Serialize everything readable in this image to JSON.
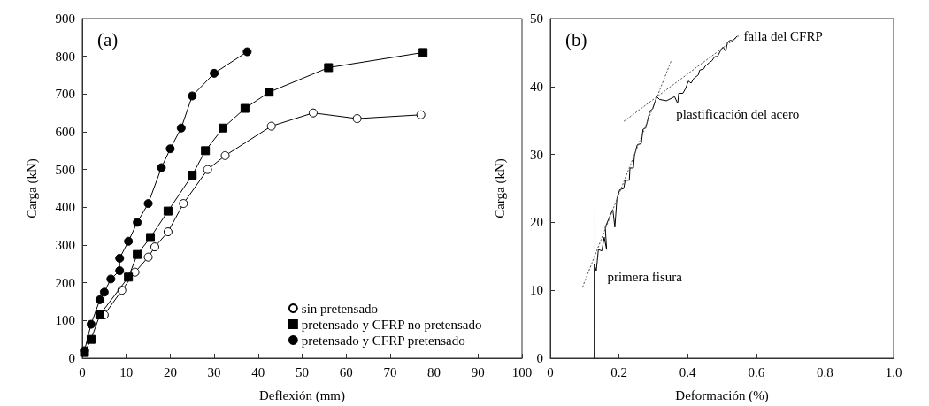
{
  "chart_data": [
    {
      "type": "line",
      "title": "(a)",
      "xlabel": "Deflexión (mm)",
      "ylabel": "Carga (kN)",
      "xlim": [
        0,
        100
      ],
      "xticks": [
        0,
        10,
        20,
        30,
        40,
        50,
        60,
        70,
        80,
        90,
        100
      ],
      "ylim": [
        0,
        900
      ],
      "yticks": [
        0,
        100,
        200,
        300,
        400,
        500,
        600,
        700,
        800,
        900
      ],
      "grid": false,
      "legend": "bottom right",
      "series": [
        {
          "name": "sin pretensado",
          "color": "#ffffff",
          "marker": "circle",
          "x": [
            5,
            9,
            12,
            15,
            16.5,
            19.5,
            23,
            28.5,
            32.5,
            43,
            52.5,
            62.5,
            77
          ],
          "values": [
            115,
            180,
            228,
            268,
            295,
            335,
            410,
            500,
            537,
            615,
            650,
            635,
            645
          ]
        },
        {
          "name": "pretensado y CFRP no pretensado",
          "color": "#000000",
          "marker": "square",
          "x": [
            0.5,
            2,
            4,
            10.5,
            12.5,
            15.5,
            19.5,
            25,
            28,
            32,
            37,
            42.5,
            56,
            77.5
          ],
          "values": [
            15,
            50,
            115,
            215,
            275,
            320,
            390,
            485,
            550,
            610,
            662,
            705,
            770,
            810
          ]
        },
        {
          "name": "pretensado y CFRP pretensado",
          "color": "#000000",
          "marker": "circle",
          "x": [
            0.5,
            2,
            4,
            5,
            6.5,
            8.5,
            8.5,
            10.5,
            12.5,
            15,
            18,
            20,
            22.5,
            25,
            30,
            37.5
          ],
          "values": [
            20,
            90,
            155,
            175,
            210,
            232,
            265,
            310,
            360,
            410,
            505,
            555,
            610,
            695,
            755,
            812
          ]
        }
      ]
    },
    {
      "type": "line",
      "title": "(b)",
      "xlabel": "Deformación (%)",
      "ylabel": "Carga (kN)",
      "xlim": [
        0,
        1
      ],
      "xticks": [
        0,
        0.2,
        0.4,
        0.6,
        0.8,
        {
          "value": 1,
          "label": "1.0"
        }
      ],
      "ylim": [
        0,
        50
      ],
      "yticks": [
        0,
        10,
        20,
        30,
        40,
        50
      ],
      "grid": false,
      "legend": false,
      "annotations": [
        {
          "text": "falla del CFRP",
          "x": 0.548,
          "y": 47.4
        },
        {
          "text": "plastificación del acero",
          "x": 0.31,
          "y": 38.5
        },
        {
          "text": "primera fisura",
          "x": 0.13,
          "y": 14
        }
      ],
      "series": [
        {
          "color": "#000000",
          "marker": "none",
          "line_style": "solid",
          "x": [
            0.128,
            0.128,
            0.134,
            0.14,
            0.15,
            0.157,
            0.164,
            0.16,
            0.17,
            0.182,
            0.188,
            0.194,
            0.202,
            0.214,
            0.218,
            0.23,
            0.232,
            0.242,
            0.245,
            0.253,
            0.265,
            0.27,
            0.278,
            0.29,
            0.298,
            0.31,
            0.318,
            0.338,
            0.362,
            0.371,
            0.374,
            0.386,
            0.394,
            0.402,
            0.41,
            0.418,
            0.431,
            0.435,
            0.447,
            0.451,
            0.463,
            0.471,
            0.479,
            0.487,
            0.495,
            0.503,
            0.511,
            0.516,
            0.524,
            0.531,
            0.544
          ],
          "values": [
            0,
            13.8,
            12.9,
            16,
            15.8,
            17.8,
            16,
            19.3,
            20.5,
            21.9,
            19.3,
            23.5,
            24.8,
            25,
            26.2,
            26.2,
            28,
            28,
            29.8,
            31.4,
            31.6,
            33.7,
            33.9,
            36.4,
            36.7,
            38.5,
            38.1,
            37.9,
            38.5,
            37.5,
            39,
            39,
            39.7,
            40.8,
            40.5,
            41.2,
            41.7,
            42.4,
            42.6,
            43,
            43.5,
            43.8,
            44.4,
            44.4,
            45.2,
            45.8,
            45.2,
            46.5,
            46.8,
            46.7,
            47.4
          ]
        },
        {
          "color": "#555555",
          "marker": "none",
          "line_style": "dotted",
          "x": [
            0.13,
            0.13
          ],
          "values": [
            0,
            21.5
          ]
        },
        {
          "color": "#555555",
          "marker": "none",
          "line_style": "dotted",
          "x": [
            0.094,
            0.353
          ],
          "values": [
            10.5,
            43.9
          ]
        },
        {
          "color": "#555555",
          "marker": "none",
          "line_style": "dotted",
          "x": [
            0.215,
            0.548
          ],
          "values": [
            34.9,
            47.4
          ]
        }
      ]
    }
  ]
}
